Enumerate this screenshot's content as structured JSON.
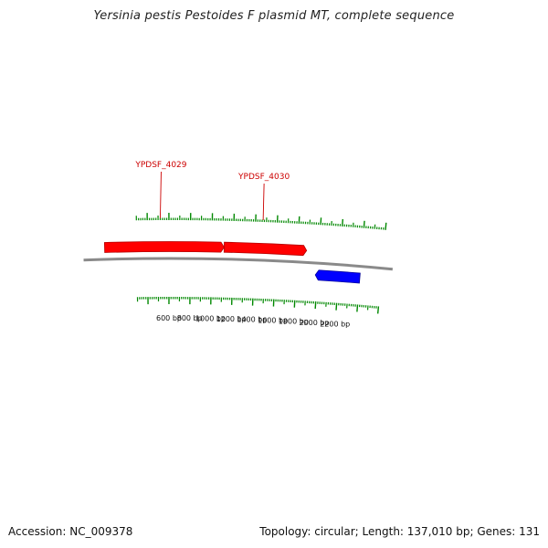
{
  "title": "Yersinia pestis Pestoides F plasmid MT, complete sequence",
  "footer": {
    "accession": "Accession: NC_009378",
    "summary": "Topology: circular; Length: 137,010 bp; Genes: 131"
  },
  "colors": {
    "forward_gene": "#ff0000",
    "reverse_gene": "#0000ff",
    "backbone": "#8a8a8a",
    "tick": "#008800",
    "gene_label": "#cc0000"
  },
  "genes": [
    {
      "id": "YPDSF_4029",
      "strand": "+",
      "start_bp": 0,
      "end_bp": 1115,
      "label": "YPDSF_4029",
      "labeled": true
    },
    {
      "id": "YPDSF_4030",
      "strand": "+",
      "start_bp": 1115,
      "end_bp": 1885,
      "label": "YPDSF_4030",
      "labeled": true
    },
    {
      "id": "reverse-gene",
      "strand": "-",
      "start_bp": 1980,
      "end_bp": 2400,
      "label": "",
      "labeled": false
    }
  ],
  "scale": {
    "labels": [
      "600 bp",
      "800 bp",
      "1000 bp",
      "1200 bp",
      "1400 bp",
      "1600 bp",
      "1800 bp",
      "2000 bp",
      "2200 bp"
    ]
  }
}
